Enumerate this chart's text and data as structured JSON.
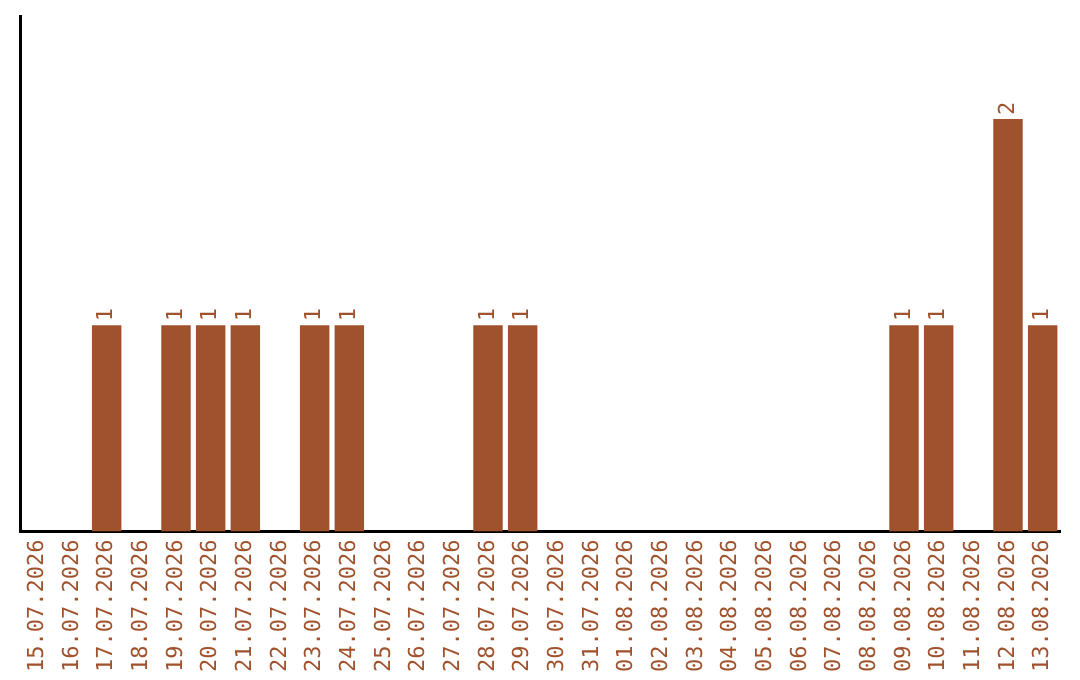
{
  "chart_data": {
    "type": "bar",
    "categories": [
      "15.07.2026",
      "16.07.2026",
      "17.07.2026",
      "18.07.2026",
      "19.07.2026",
      "20.07.2026",
      "21.07.2026",
      "22.07.2026",
      "23.07.2026",
      "24.07.2026",
      "25.07.2026",
      "26.07.2026",
      "27.07.2026",
      "28.07.2026",
      "29.07.2026",
      "30.07.2026",
      "31.07.2026",
      "01.08.2026",
      "02.08.2026",
      "03.08.2026",
      "04.08.2026",
      "05.08.2026",
      "06.08.2026",
      "07.08.2026",
      "08.08.2026",
      "09.08.2026",
      "10.08.2026",
      "11.08.2026",
      "12.08.2026",
      "13.08.2026"
    ],
    "values": [
      0,
      0,
      1,
      0,
      1,
      1,
      1,
      0,
      1,
      1,
      0,
      0,
      0,
      1,
      1,
      0,
      0,
      0,
      0,
      0,
      0,
      0,
      0,
      0,
      0,
      1,
      1,
      0,
      2,
      1
    ],
    "value_labels": [
      null,
      null,
      "1",
      null,
      "1",
      "1",
      "1",
      null,
      "1",
      "1",
      null,
      null,
      null,
      "1",
      "1",
      null,
      null,
      null,
      null,
      null,
      null,
      null,
      null,
      null,
      null,
      "1",
      "1",
      null,
      "2",
      "1"
    ],
    "color": "#a0522d",
    "grid": false,
    "legend": false,
    "tick_labels": "x"
  }
}
